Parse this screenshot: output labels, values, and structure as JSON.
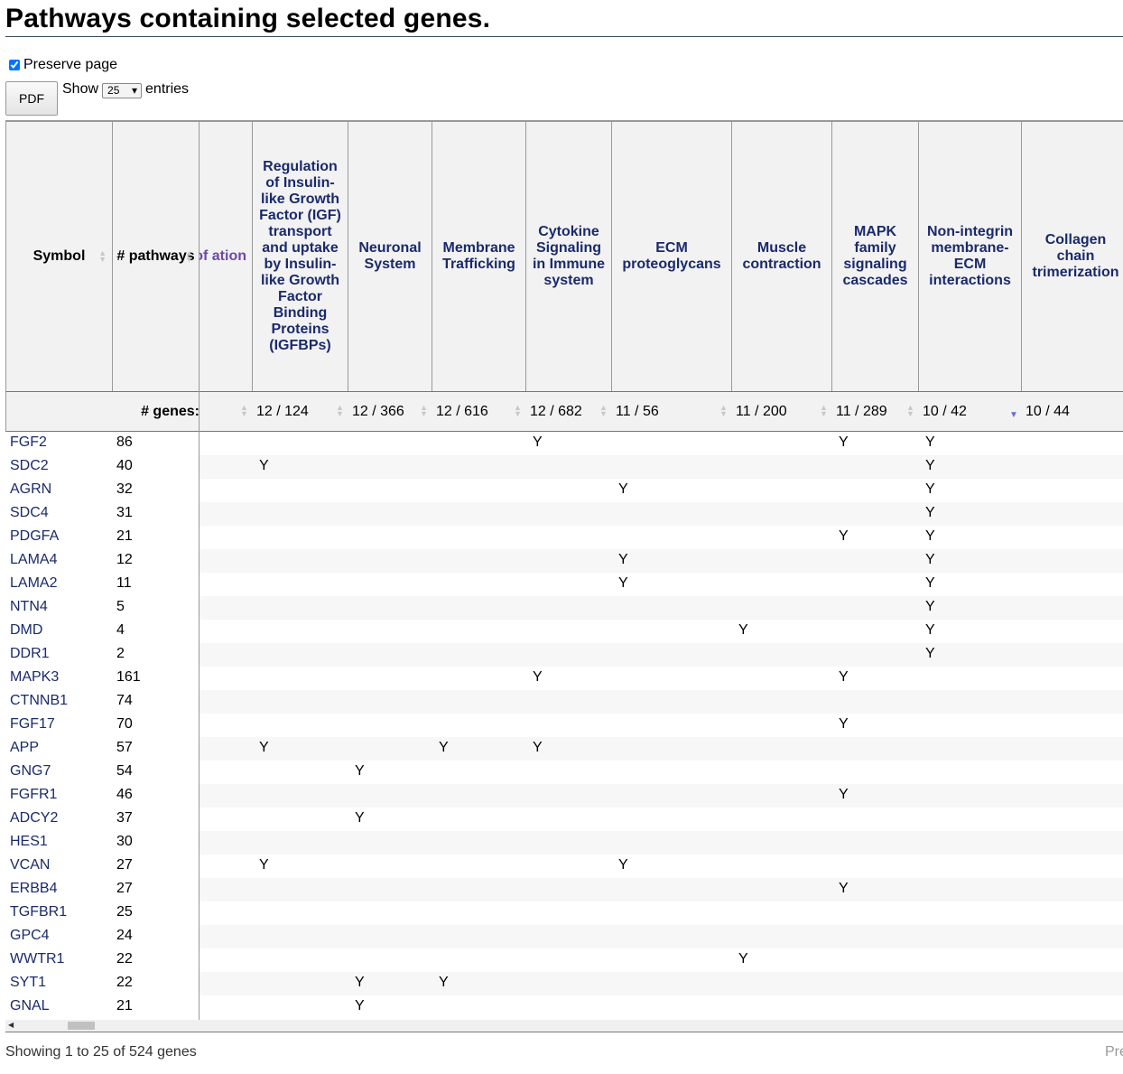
{
  "page": {
    "title": "Pathways containing selected genes.",
    "preserve_label": "Preserve page",
    "preserve_checked": true,
    "pdf_label": "PDF",
    "show_label": "Show",
    "show_value": "25",
    "entries_label": "entries",
    "info_text": "Showing 1 to 25 of 524 genes",
    "prev_label": "Pre"
  },
  "table": {
    "symbol_header": "Symbol",
    "pathways_header": "# pathways",
    "genes_label": "# genes:",
    "columns": [
      {
        "name": "es of ation",
        "count": ""
      },
      {
        "name": "Regulation of Insulin-like Growth Factor (IGF) transport and uptake by Insulin-like Growth Factor Binding Proteins (IGFBPs)",
        "count": "12 / 124"
      },
      {
        "name": "Neuronal System",
        "count": "12 / 366"
      },
      {
        "name": "Membrane Trafficking",
        "count": "12 / 616"
      },
      {
        "name": "Cytokine Signaling in Immune system",
        "count": "12 / 682"
      },
      {
        "name": "ECM proteoglycans",
        "count": "11 / 56"
      },
      {
        "name": "Muscle contraction",
        "count": "11 / 200"
      },
      {
        "name": "MAPK family signaling cascades",
        "count": "11 / 289"
      },
      {
        "name": "Non-integrin membrane-ECM interactions",
        "count": "10 / 42"
      },
      {
        "name": "Collagen chain trimerization",
        "count": "10 / 44"
      }
    ],
    "rows": [
      {
        "symbol": "FGF2",
        "pathways": "86",
        "marks": [
          0,
          0,
          0,
          0,
          1,
          0,
          0,
          1,
          1,
          0
        ]
      },
      {
        "symbol": "SDC2",
        "pathways": "40",
        "marks": [
          0,
          1,
          0,
          0,
          0,
          0,
          0,
          0,
          1,
          0
        ]
      },
      {
        "symbol": "AGRN",
        "pathways": "32",
        "marks": [
          0,
          0,
          0,
          0,
          0,
          1,
          0,
          0,
          1,
          0
        ]
      },
      {
        "symbol": "SDC4",
        "pathways": "31",
        "marks": [
          0,
          0,
          0,
          0,
          0,
          0,
          0,
          0,
          1,
          0
        ]
      },
      {
        "symbol": "PDGFA",
        "pathways": "21",
        "marks": [
          0,
          0,
          0,
          0,
          0,
          0,
          0,
          1,
          1,
          0
        ]
      },
      {
        "symbol": "LAMA4",
        "pathways": "12",
        "marks": [
          0,
          0,
          0,
          0,
          0,
          1,
          0,
          0,
          1,
          0
        ]
      },
      {
        "symbol": "LAMA2",
        "pathways": "11",
        "marks": [
          0,
          0,
          0,
          0,
          0,
          1,
          0,
          0,
          1,
          0
        ]
      },
      {
        "symbol": "NTN4",
        "pathways": "5",
        "marks": [
          0,
          0,
          0,
          0,
          0,
          0,
          0,
          0,
          1,
          0
        ]
      },
      {
        "symbol": "DMD",
        "pathways": "4",
        "marks": [
          0,
          0,
          0,
          0,
          0,
          0,
          1,
          0,
          1,
          0
        ]
      },
      {
        "symbol": "DDR1",
        "pathways": "2",
        "marks": [
          0,
          0,
          0,
          0,
          0,
          0,
          0,
          0,
          1,
          0
        ]
      },
      {
        "symbol": "MAPK3",
        "pathways": "161",
        "marks": [
          0,
          0,
          0,
          0,
          1,
          0,
          0,
          1,
          0,
          0
        ]
      },
      {
        "symbol": "CTNNB1",
        "pathways": "74",
        "marks": [
          0,
          0,
          0,
          0,
          0,
          0,
          0,
          0,
          0,
          0
        ]
      },
      {
        "symbol": "FGF17",
        "pathways": "70",
        "marks": [
          0,
          0,
          0,
          0,
          0,
          0,
          0,
          1,
          0,
          0
        ]
      },
      {
        "symbol": "APP",
        "pathways": "57",
        "marks": [
          0,
          1,
          0,
          1,
          1,
          0,
          0,
          0,
          0,
          0
        ]
      },
      {
        "symbol": "GNG7",
        "pathways": "54",
        "marks": [
          0,
          0,
          1,
          0,
          0,
          0,
          0,
          0,
          0,
          0
        ]
      },
      {
        "symbol": "FGFR1",
        "pathways": "46",
        "marks": [
          0,
          0,
          0,
          0,
          0,
          0,
          0,
          1,
          0,
          0
        ]
      },
      {
        "symbol": "ADCY2",
        "pathways": "37",
        "marks": [
          0,
          0,
          1,
          0,
          0,
          0,
          0,
          0,
          0,
          0
        ]
      },
      {
        "symbol": "HES1",
        "pathways": "30",
        "marks": [
          0,
          0,
          0,
          0,
          0,
          0,
          0,
          0,
          0,
          0
        ]
      },
      {
        "symbol": "VCAN",
        "pathways": "27",
        "marks": [
          0,
          1,
          0,
          0,
          0,
          1,
          0,
          0,
          0,
          0
        ]
      },
      {
        "symbol": "ERBB4",
        "pathways": "27",
        "marks": [
          0,
          0,
          0,
          0,
          0,
          0,
          0,
          1,
          0,
          0
        ]
      },
      {
        "symbol": "TGFBR1",
        "pathways": "25",
        "marks": [
          0,
          0,
          0,
          0,
          0,
          0,
          0,
          0,
          0,
          0
        ]
      },
      {
        "symbol": "GPC4",
        "pathways": "24",
        "marks": [
          0,
          0,
          0,
          0,
          0,
          0,
          0,
          0,
          0,
          0
        ]
      },
      {
        "symbol": "WWTR1",
        "pathways": "22",
        "marks": [
          0,
          0,
          0,
          0,
          0,
          0,
          1,
          0,
          0,
          0
        ]
      },
      {
        "symbol": "SYT1",
        "pathways": "22",
        "marks": [
          0,
          0,
          1,
          1,
          0,
          0,
          0,
          0,
          0,
          0
        ]
      },
      {
        "symbol": "GNAL",
        "pathways": "21",
        "marks": [
          0,
          0,
          1,
          0,
          0,
          0,
          0,
          0,
          0,
          0
        ]
      }
    ],
    "mark_text": "Y"
  }
}
